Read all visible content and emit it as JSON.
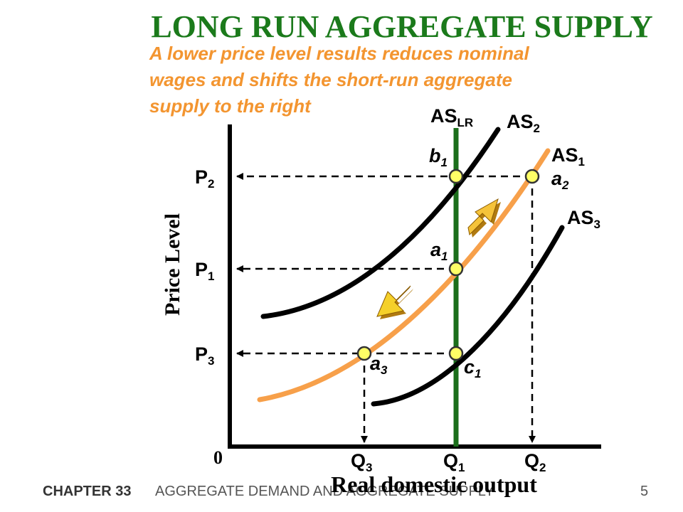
{
  "title": "LONG RUN AGGREGATE SUPPLY",
  "subtitle_lines": [
    "A lower price level results reduces nominal",
    "wages and shifts the short-run aggregate",
    "supply to the right"
  ],
  "curves": {
    "as_lr": {
      "text": "AS",
      "sub": "LR"
    },
    "as2": {
      "text": "AS",
      "sub": "2"
    },
    "as1": {
      "text": "AS",
      "sub": "1"
    },
    "as3": {
      "text": "AS",
      "sub": "3"
    }
  },
  "points": {
    "b1": {
      "text": "b",
      "sub": "1"
    },
    "a2": {
      "text": "a",
      "sub": "2"
    },
    "a1": {
      "text": "a",
      "sub": "1"
    },
    "a3": {
      "text": "a",
      "sub": "3"
    },
    "c1": {
      "text": "c",
      "sub": "1"
    }
  },
  "prices": {
    "p2": {
      "text": "P",
      "sub": "2"
    },
    "p1": {
      "text": "P",
      "sub": "1"
    },
    "p3": {
      "text": "P",
      "sub": "3"
    }
  },
  "quantities": {
    "q3": {
      "text": "Q",
      "sub": "3"
    },
    "q1": {
      "text": "Q",
      "sub": "1"
    },
    "q2": {
      "text": "Q",
      "sub": "2"
    }
  },
  "axis": {
    "y_label": "Price Level",
    "x_label": "Real domestic output",
    "origin": "0"
  },
  "footer": {
    "chapter": "CHAPTER 33",
    "topic": "AGGREGATE DEMAND AND AGGREGATE SUPPLY",
    "page": "5"
  }
}
